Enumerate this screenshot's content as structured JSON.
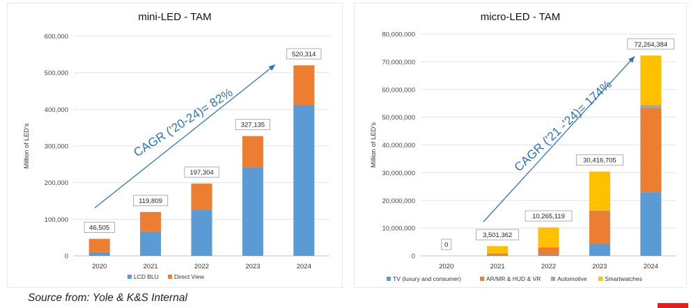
{
  "charts": [
    {
      "id": "mini",
      "title": "mini-LED - TAM",
      "ylabel": "Million of LED's",
      "cagr_label": "CAGR ('20-24)= 82%",
      "ticks": [
        "0",
        "100,000",
        "200,000",
        "300,000",
        "400,000",
        "500,000",
        "600,000"
      ]
    },
    {
      "id": "micro",
      "title": "micro-LED - TAM",
      "ylabel": "Million of LED's",
      "cagr_label": "CAGR ('21 -'24)= 174%",
      "ticks": [
        "0",
        "10,000,000",
        "20,000,000",
        "30,000,000",
        "40,000,000",
        "50,000,000",
        "60,000,000",
        "70,000,000",
        "80,000,000"
      ]
    }
  ],
  "source_text": "Source from: Yole & K&S Internal",
  "chart_data": [
    {
      "type": "bar",
      "stacked": true,
      "title": "mini-LED - TAM",
      "xlabel": "",
      "ylabel": "Million of LED's",
      "ylim": [
        0,
        600000
      ],
      "grid": "horizontal",
      "legend_position": "bottom",
      "categories": [
        "2020",
        "2021",
        "2022",
        "2023",
        "2024"
      ],
      "series": [
        {
          "name": "LCD BLU",
          "color": "#5b9bd5",
          "values": [
            10000,
            66000,
            127000,
            242000,
            412000
          ]
        },
        {
          "name": "Direct View",
          "color": "#ed7d31",
          "values": [
            36505,
            53809,
            70304,
            85135,
            108314
          ]
        }
      ],
      "totals": [
        "46,505",
        "119,809",
        "197,304",
        "327,135",
        "520,314"
      ],
      "annotation": "CAGR ('20-24)= 82%"
    },
    {
      "type": "bar",
      "stacked": true,
      "title": "micro-LED - TAM",
      "xlabel": "",
      "ylabel": "Million of LED's",
      "ylim": [
        0,
        80000000
      ],
      "grid": "horizontal",
      "legend_position": "bottom",
      "categories": [
        "2020",
        "2021",
        "2022",
        "2023",
        "2024"
      ],
      "series": [
        {
          "name": "TV (luxury and consumer)",
          "color": "#5b9bd5",
          "values": [
            0,
            100000,
            400000,
            4400000,
            23000000
          ]
        },
        {
          "name": "AR/MR & HUD & VR",
          "color": "#ed7d31",
          "values": [
            0,
            700000,
            2700000,
            11800000,
            30400000
          ]
        },
        {
          "name": "Automotive",
          "color": "#a5a5a5",
          "values": [
            0,
            50000,
            100000,
            200000,
            1000000
          ]
        },
        {
          "name": "Smartwatches",
          "color": "#ffc000",
          "values": [
            0,
            2651362,
            7065119,
            14016705,
            17864384
          ]
        }
      ],
      "totals": [
        "0",
        "3,501,362",
        "10,265,119",
        "30,416,705",
        "72,264,384"
      ],
      "annotation": "CAGR ('21 -'24)= 174%"
    }
  ]
}
